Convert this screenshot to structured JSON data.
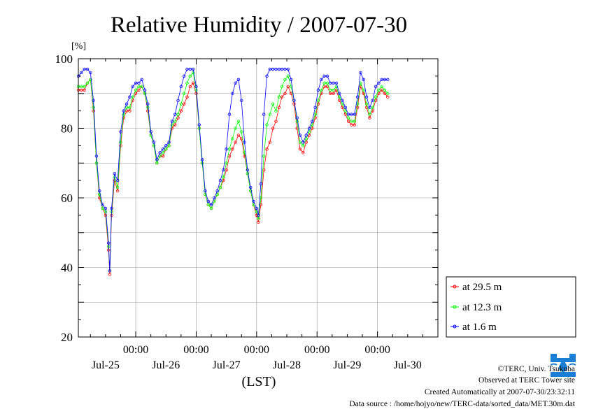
{
  "chart_data": {
    "type": "line",
    "title": "Relative Humidity / 2007-07-30",
    "ylabel": "[%]",
    "xlabel": "(LST)",
    "ylim": [
      20,
      100
    ],
    "yticks": [
      20,
      40,
      60,
      80,
      100
    ],
    "x_units": "days since 2007-07-24 00:00 LST",
    "xlim": [
      0.05,
      6.0
    ],
    "time_tick_labels": [
      {
        "x": 1,
        "time": "00:00",
        "date": "Jul-25"
      },
      {
        "x": 2,
        "time": "00:00",
        "date": "Jul-26"
      },
      {
        "x": 3,
        "time": "00:00",
        "date": "Jul-27"
      },
      {
        "x": 4,
        "time": "00:00",
        "date": "Jul-28"
      },
      {
        "x": 5,
        "time": "00:00",
        "date": "Jul-29"
      },
      {
        "x": 6,
        "time": "",
        "date": "Jul-30"
      }
    ],
    "grid": true,
    "legend_position": "right-bottom",
    "series": [
      {
        "name": "at 29.5 m",
        "color": "#ff0000",
        "points": [
          [
            0.05,
            91
          ],
          [
            0.1,
            91
          ],
          [
            0.15,
            91
          ],
          [
            0.2,
            93
          ],
          [
            0.25,
            94
          ],
          [
            0.3,
            85
          ],
          [
            0.35,
            70
          ],
          [
            0.4,
            60
          ],
          [
            0.45,
            57
          ],
          [
            0.5,
            55
          ],
          [
            0.55,
            45
          ],
          [
            0.57,
            38
          ],
          [
            0.6,
            55
          ],
          [
            0.65,
            65
          ],
          [
            0.7,
            62
          ],
          [
            0.75,
            75
          ],
          [
            0.8,
            83
          ],
          [
            0.85,
            85
          ],
          [
            0.9,
            85
          ],
          [
            0.95,
            88
          ],
          [
            1.0,
            90
          ],
          [
            1.05,
            91
          ],
          [
            1.1,
            92
          ],
          [
            1.15,
            90
          ],
          [
            1.2,
            85
          ],
          [
            1.25,
            78
          ],
          [
            1.3,
            75
          ],
          [
            1.35,
            70
          ],
          [
            1.4,
            72
          ],
          [
            1.45,
            72
          ],
          [
            1.5,
            74
          ],
          [
            1.55,
            75
          ],
          [
            1.6,
            80
          ],
          [
            1.65,
            81
          ],
          [
            1.7,
            83
          ],
          [
            1.75,
            85
          ],
          [
            1.8,
            87
          ],
          [
            1.85,
            89
          ],
          [
            1.9,
            92
          ],
          [
            1.95,
            93
          ],
          [
            2.0,
            90
          ],
          [
            2.05,
            80
          ],
          [
            2.1,
            70
          ],
          [
            2.15,
            61
          ],
          [
            2.2,
            58
          ],
          [
            2.25,
            57
          ],
          [
            2.3,
            59
          ],
          [
            2.35,
            61
          ],
          [
            2.4,
            63
          ],
          [
            2.45,
            65
          ],
          [
            2.5,
            68
          ],
          [
            2.55,
            72
          ],
          [
            2.6,
            74
          ],
          [
            2.65,
            76
          ],
          [
            2.7,
            78
          ],
          [
            2.75,
            77
          ],
          [
            2.8,
            72
          ],
          [
            2.85,
            67
          ],
          [
            2.9,
            62
          ],
          [
            2.95,
            58
          ],
          [
            3.0,
            55
          ],
          [
            3.03,
            53
          ],
          [
            3.07,
            58
          ],
          [
            3.12,
            68
          ],
          [
            3.17,
            74
          ],
          [
            3.22,
            76
          ],
          [
            3.27,
            80
          ],
          [
            3.32,
            82
          ],
          [
            3.37,
            86
          ],
          [
            3.42,
            89
          ],
          [
            3.47,
            90
          ],
          [
            3.52,
            92
          ],
          [
            3.57,
            90
          ],
          [
            3.62,
            87
          ],
          [
            3.67,
            80
          ],
          [
            3.72,
            74
          ],
          [
            3.77,
            73
          ],
          [
            3.82,
            76
          ],
          [
            3.87,
            78
          ],
          [
            3.92,
            80
          ],
          [
            3.97,
            83
          ],
          [
            4.02,
            87
          ],
          [
            4.07,
            90
          ],
          [
            4.12,
            92
          ],
          [
            4.17,
            92
          ],
          [
            4.22,
            90
          ],
          [
            4.27,
            90
          ],
          [
            4.32,
            91
          ],
          [
            4.37,
            88
          ],
          [
            4.42,
            86
          ],
          [
            4.47,
            84
          ],
          [
            4.52,
            82
          ],
          [
            4.57,
            81
          ],
          [
            4.62,
            81
          ],
          [
            4.67,
            86
          ],
          [
            4.72,
            92
          ],
          [
            4.77,
            90
          ],
          [
            4.82,
            86
          ],
          [
            4.87,
            83
          ],
          [
            4.92,
            85
          ],
          [
            4.97,
            88
          ],
          [
            5.02,
            90
          ],
          [
            5.07,
            91
          ],
          [
            5.12,
            90
          ],
          [
            5.17,
            89
          ]
        ]
      },
      {
        "name": "at 12.3 m",
        "color": "#00ff00",
        "points": [
          [
            0.05,
            92
          ],
          [
            0.1,
            92
          ],
          [
            0.15,
            92
          ],
          [
            0.2,
            93
          ],
          [
            0.25,
            94
          ],
          [
            0.3,
            86
          ],
          [
            0.35,
            70
          ],
          [
            0.4,
            61
          ],
          [
            0.45,
            57
          ],
          [
            0.5,
            56
          ],
          [
            0.55,
            46
          ],
          [
            0.57,
            39
          ],
          [
            0.6,
            56
          ],
          [
            0.65,
            66
          ],
          [
            0.7,
            63
          ],
          [
            0.75,
            76
          ],
          [
            0.8,
            84
          ],
          [
            0.85,
            86
          ],
          [
            0.9,
            86
          ],
          [
            0.95,
            89
          ],
          [
            1.0,
            91
          ],
          [
            1.05,
            92
          ],
          [
            1.1,
            92
          ],
          [
            1.15,
            90
          ],
          [
            1.2,
            86
          ],
          [
            1.25,
            78
          ],
          [
            1.3,
            75
          ],
          [
            1.35,
            70
          ],
          [
            1.4,
            72
          ],
          [
            1.45,
            73
          ],
          [
            1.5,
            74
          ],
          [
            1.55,
            75
          ],
          [
            1.6,
            81
          ],
          [
            1.65,
            82
          ],
          [
            1.7,
            84
          ],
          [
            1.75,
            87
          ],
          [
            1.8,
            90
          ],
          [
            1.85,
            93
          ],
          [
            1.9,
            95
          ],
          [
            1.95,
            96
          ],
          [
            2.0,
            91
          ],
          [
            2.05,
            80
          ],
          [
            2.1,
            70
          ],
          [
            2.15,
            61
          ],
          [
            2.2,
            58
          ],
          [
            2.25,
            57
          ],
          [
            2.3,
            59
          ],
          [
            2.35,
            61
          ],
          [
            2.4,
            63
          ],
          [
            2.45,
            66
          ],
          [
            2.5,
            70
          ],
          [
            2.55,
            74
          ],
          [
            2.6,
            77
          ],
          [
            2.65,
            80
          ],
          [
            2.7,
            82
          ],
          [
            2.75,
            79
          ],
          [
            2.8,
            73
          ],
          [
            2.85,
            67
          ],
          [
            2.9,
            62
          ],
          [
            2.95,
            58
          ],
          [
            3.0,
            56
          ],
          [
            3.03,
            54
          ],
          [
            3.07,
            60
          ],
          [
            3.12,
            72
          ],
          [
            3.17,
            81
          ],
          [
            3.22,
            84
          ],
          [
            3.27,
            87
          ],
          [
            3.32,
            85
          ],
          [
            3.37,
            89
          ],
          [
            3.42,
            92
          ],
          [
            3.47,
            94
          ],
          [
            3.52,
            95
          ],
          [
            3.57,
            92
          ],
          [
            3.62,
            88
          ],
          [
            3.67,
            82
          ],
          [
            3.72,
            76
          ],
          [
            3.77,
            75
          ],
          [
            3.82,
            77
          ],
          [
            3.87,
            79
          ],
          [
            3.92,
            81
          ],
          [
            3.97,
            84
          ],
          [
            4.02,
            88
          ],
          [
            4.07,
            91
          ],
          [
            4.12,
            93
          ],
          [
            4.17,
            93
          ],
          [
            4.22,
            91
          ],
          [
            4.27,
            91
          ],
          [
            4.32,
            92
          ],
          [
            4.37,
            89
          ],
          [
            4.42,
            87
          ],
          [
            4.47,
            85
          ],
          [
            4.52,
            83
          ],
          [
            4.57,
            82
          ],
          [
            4.62,
            82
          ],
          [
            4.67,
            87
          ],
          [
            4.72,
            93
          ],
          [
            4.77,
            91
          ],
          [
            4.82,
            87
          ],
          [
            4.87,
            84
          ],
          [
            4.92,
            86
          ],
          [
            4.97,
            89
          ],
          [
            5.02,
            91
          ],
          [
            5.07,
            92
          ],
          [
            5.12,
            91
          ],
          [
            5.17,
            90
          ]
        ]
      },
      {
        "name": "at 1.6 m",
        "color": "#0000ff",
        "points": [
          [
            0.05,
            95
          ],
          [
            0.1,
            96
          ],
          [
            0.15,
            97
          ],
          [
            0.2,
            97
          ],
          [
            0.25,
            96
          ],
          [
            0.3,
            88
          ],
          [
            0.35,
            72
          ],
          [
            0.4,
            62
          ],
          [
            0.45,
            58
          ],
          [
            0.5,
            57
          ],
          [
            0.55,
            47
          ],
          [
            0.57,
            39
          ],
          [
            0.6,
            57
          ],
          [
            0.65,
            67
          ],
          [
            0.7,
            65
          ],
          [
            0.75,
            79
          ],
          [
            0.8,
            85
          ],
          [
            0.85,
            87
          ],
          [
            0.9,
            89
          ],
          [
            0.95,
            92
          ],
          [
            1.0,
            93
          ],
          [
            1.05,
            93
          ],
          [
            1.1,
            94
          ],
          [
            1.15,
            91
          ],
          [
            1.2,
            87
          ],
          [
            1.25,
            79
          ],
          [
            1.3,
            76
          ],
          [
            1.35,
            71
          ],
          [
            1.4,
            73
          ],
          [
            1.45,
            74
          ],
          [
            1.5,
            75
          ],
          [
            1.55,
            76
          ],
          [
            1.6,
            82
          ],
          [
            1.65,
            84
          ],
          [
            1.7,
            88
          ],
          [
            1.75,
            92
          ],
          [
            1.8,
            95
          ],
          [
            1.85,
            97
          ],
          [
            1.9,
            97
          ],
          [
            1.95,
            97
          ],
          [
            2.0,
            92
          ],
          [
            2.05,
            81
          ],
          [
            2.1,
            71
          ],
          [
            2.15,
            62
          ],
          [
            2.2,
            59
          ],
          [
            2.25,
            58
          ],
          [
            2.3,
            60
          ],
          [
            2.35,
            62
          ],
          [
            2.4,
            65
          ],
          [
            2.45,
            68
          ],
          [
            2.5,
            74
          ],
          [
            2.55,
            84
          ],
          [
            2.6,
            90
          ],
          [
            2.65,
            93
          ],
          [
            2.7,
            94
          ],
          [
            2.75,
            88
          ],
          [
            2.8,
            76
          ],
          [
            2.85,
            68
          ],
          [
            2.9,
            63
          ],
          [
            2.95,
            59
          ],
          [
            3.0,
            57
          ],
          [
            3.03,
            55
          ],
          [
            3.07,
            64
          ],
          [
            3.12,
            84
          ],
          [
            3.17,
            95
          ],
          [
            3.22,
            97
          ],
          [
            3.27,
            97
          ],
          [
            3.32,
            97
          ],
          [
            3.37,
            97
          ],
          [
            3.42,
            97
          ],
          [
            3.47,
            97
          ],
          [
            3.52,
            97
          ],
          [
            3.57,
            94
          ],
          [
            3.62,
            88
          ],
          [
            3.67,
            83
          ],
          [
            3.72,
            78
          ],
          [
            3.77,
            76
          ],
          [
            3.82,
            78
          ],
          [
            3.87,
            80
          ],
          [
            3.92,
            82
          ],
          [
            3.97,
            86
          ],
          [
            4.02,
            91
          ],
          [
            4.07,
            94
          ],
          [
            4.12,
            95
          ],
          [
            4.17,
            95
          ],
          [
            4.22,
            93
          ],
          [
            4.27,
            93
          ],
          [
            4.32,
            93
          ],
          [
            4.37,
            90
          ],
          [
            4.42,
            88
          ],
          [
            4.47,
            86
          ],
          [
            4.52,
            84
          ],
          [
            4.57,
            84
          ],
          [
            4.62,
            84
          ],
          [
            4.67,
            89
          ],
          [
            4.72,
            96
          ],
          [
            4.77,
            94
          ],
          [
            4.82,
            89
          ],
          [
            4.87,
            86
          ],
          [
            4.92,
            88
          ],
          [
            4.97,
            92
          ],
          [
            5.02,
            93
          ],
          [
            5.07,
            94
          ],
          [
            5.12,
            94
          ],
          [
            5.17,
            94
          ]
        ]
      }
    ]
  },
  "footer": {
    "copyright": "©TERC, Univ. Tsukuba",
    "observed": "Observed at TERC Tower site",
    "created": "Created Automatically at 2007-07-30/23:32:11",
    "source": "Data source : /home/hojyo/new/TERC-data/sorted_data/MET.30m.dat"
  },
  "logo": {
    "text": "TERC",
    "color": "#1a7fd4"
  }
}
